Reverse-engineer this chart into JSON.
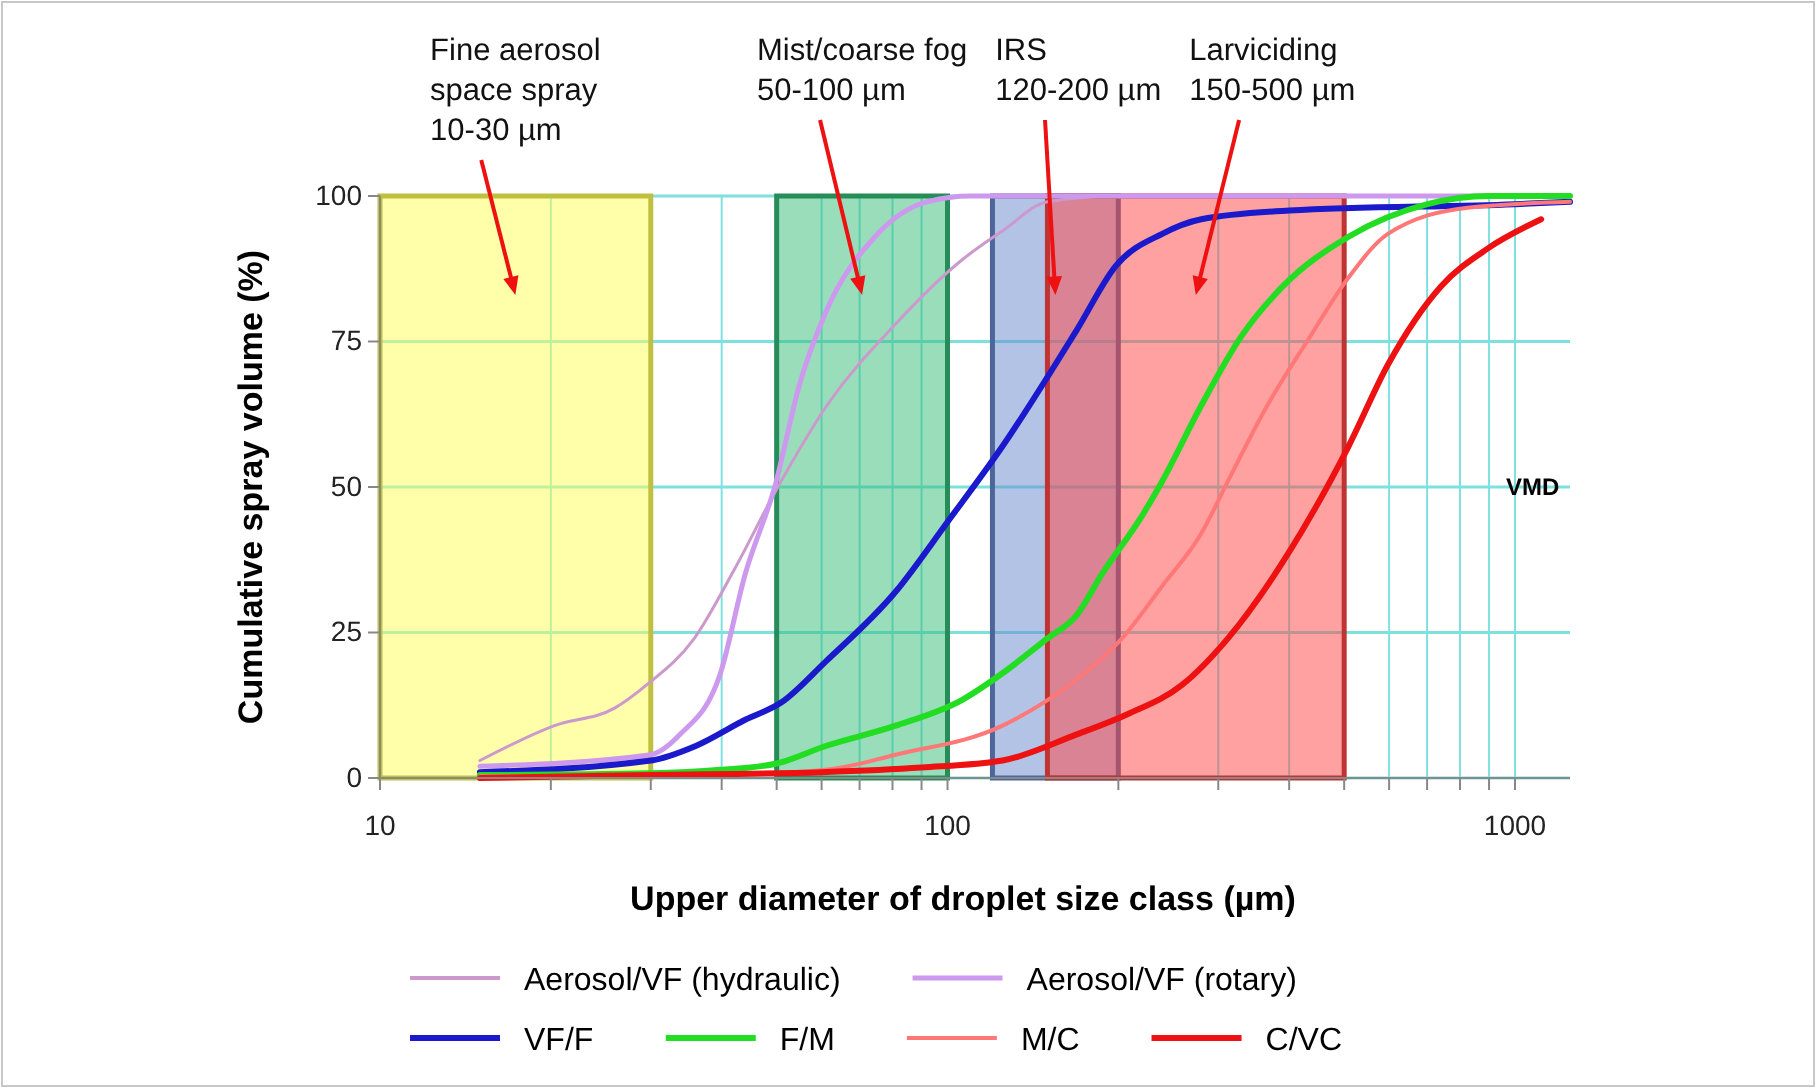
{
  "chart_data": {
    "type": "line",
    "xlabel": "Upper diameter of droplet size class (µm)",
    "ylabel": "Cumulative spray volume (%)",
    "log": "x",
    "xlim": [
      10,
      1250
    ],
    "ylim": [
      0,
      100
    ],
    "xticks": [
      10,
      {
        "value": 20,
        "label": null
      },
      {
        "value": 30,
        "label": null
      },
      {
        "value": 40,
        "label": null
      },
      {
        "value": 50,
        "label": null
      },
      {
        "value": 60,
        "label": null
      },
      {
        "value": 70,
        "label": null
      },
      {
        "value": 80,
        "label": null
      },
      {
        "value": 90,
        "label": null
      },
      100,
      {
        "value": 200,
        "label": null
      },
      {
        "value": 300,
        "label": null
      },
      {
        "value": 400,
        "label": null
      },
      {
        "value": 500,
        "label": null
      },
      {
        "value": 600,
        "label": null
      },
      {
        "value": 700,
        "label": null
      },
      {
        "value": 800,
        "label": null
      },
      {
        "value": 900,
        "label": null
      },
      1000
    ],
    "yticks": [
      0,
      25,
      50,
      75,
      100
    ],
    "grid": true,
    "legend": "bottom",
    "line_style": "solid",
    "marker": "none",
    "series": [
      {
        "name": "Aerosol/VF (hydraulic)",
        "color": "#cc99cc",
        "x": [
          15,
          20.3,
          25.9,
          29.5,
          35.8,
          42.2,
          49.6,
          61.3,
          81,
          106,
          125,
          150,
          200,
          1250
        ],
        "values": [
          3,
          9,
          12,
          16,
          24,
          36,
          49,
          64,
          78,
          89,
          94,
          99,
          100,
          100
        ]
      },
      {
        "name": "Aerosol/VF (rotary)",
        "color": "#cc99ee",
        "x": [
          15,
          30,
          33.8,
          39.8,
          44,
          49.6,
          55,
          61,
          74.5,
          92,
          110,
          1250
        ],
        "values": [
          2,
          4,
          7.5,
          18,
          35,
          50,
          68,
          80,
          93,
          99,
          100,
          100
        ]
      },
      {
        "name": "VF/F",
        "color": "#1a1acc",
        "x": [
          15,
          30,
          36,
          44,
          51,
          61,
          81,
          100,
          125,
          169,
          198,
          239,
          280,
          400,
          1000,
          1250
        ],
        "values": [
          1,
          3,
          5.5,
          10,
          13,
          20,
          32,
          44,
          57,
          77,
          88,
          93.5,
          96,
          97.5,
          98.6,
          99
        ]
      },
      {
        "name": "F/M",
        "color": "#22dd22",
        "x": [
          15,
          30,
          39.8,
          50,
          61,
          81,
          106,
          125,
          150,
          169,
          187,
          220,
          239,
          280,
          330,
          390,
          509,
          701,
          900,
          1250
        ],
        "values": [
          0.5,
          0.8,
          1.4,
          2.5,
          5.5,
          9,
          13.4,
          18,
          24,
          28,
          35,
          45,
          51,
          64,
          76,
          84.5,
          93,
          98.6,
          100,
          100
        ]
      },
      {
        "name": "M/C",
        "color": "#ff7777",
        "x": [
          15,
          40,
          61,
          81,
          125,
          169,
          203,
          239,
          280,
          312,
          366,
          430,
          509,
          597,
          825,
          1250
        ],
        "values": [
          0.3,
          0.6,
          1.4,
          4,
          9,
          17,
          24,
          33,
          42,
          51,
          64,
          75,
          86,
          93.5,
          98,
          99
        ]
      },
      {
        "name": "C/VC",
        "color": "#ee1111",
        "x": [
          15,
          30,
          60,
          90,
          125,
          169,
          208,
          259,
          312,
          398,
          509,
          597,
          741,
          896,
          1112
        ],
        "values": [
          0,
          0.5,
          1,
          1.8,
          3,
          7.5,
          11,
          16,
          24,
          38.5,
          57,
          71,
          84.5,
          91,
          96
        ]
      }
    ],
    "bands": [
      {
        "axis": "x",
        "from": 10,
        "to": 30,
        "label": "Fine aerosol\nspace spray\n10-30  µm",
        "color": "#ffff55"
      },
      {
        "axis": "x",
        "from": 50,
        "to": 100,
        "label": "Mist/coarse fog\n50-100 µm",
        "color": "#33bb77"
      },
      {
        "axis": "x",
        "from": 120,
        "to": 200,
        "label": "IRS\n120-200 µm",
        "color": "#6688cc"
      },
      {
        "axis": "x",
        "from": 150,
        "to": 500,
        "label": "Larviciding\n150-500 µm",
        "color": "#ff4444"
      }
    ],
    "annotations": [
      "VMD"
    ]
  }
}
